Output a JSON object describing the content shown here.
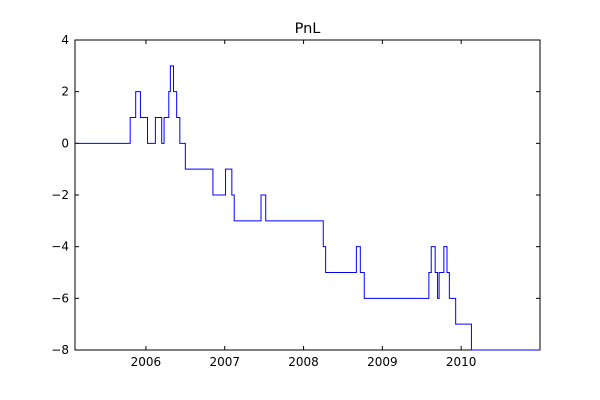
{
  "chart_data": {
    "type": "line",
    "title": "PnL",
    "xlabel": "",
    "ylabel": "",
    "xlim": [
      2005.1,
      2011.0
    ],
    "ylim": [
      -8,
      4
    ],
    "grid": false,
    "x_ticks": [
      {
        "value": 2006,
        "label": "2006"
      },
      {
        "value": 2007,
        "label": "2007"
      },
      {
        "value": 2008,
        "label": "2008"
      },
      {
        "value": 2009,
        "label": "2009"
      },
      {
        "value": 2010,
        "label": "2010"
      }
    ],
    "y_ticks": [
      {
        "value": 4,
        "label": "4"
      },
      {
        "value": 2,
        "label": "2"
      },
      {
        "value": 0,
        "label": "0"
      },
      {
        "value": -2,
        "label": "−2"
      },
      {
        "value": -4,
        "label": "−4"
      },
      {
        "value": -6,
        "label": "−6"
      },
      {
        "value": -8,
        "label": "−8"
      }
    ],
    "series": [
      {
        "color": "#0000ff",
        "step": true,
        "points": [
          [
            2005.1,
            0
          ],
          [
            2005.8,
            1
          ],
          [
            2005.87,
            2
          ],
          [
            2005.93,
            1
          ],
          [
            2006.02,
            0
          ],
          [
            2006.12,
            1
          ],
          [
            2006.2,
            0
          ],
          [
            2006.23,
            1
          ],
          [
            2006.29,
            2
          ],
          [
            2006.31,
            3
          ],
          [
            2006.35,
            2
          ],
          [
            2006.39,
            1
          ],
          [
            2006.43,
            0
          ],
          [
            2006.5,
            -1
          ],
          [
            2006.85,
            -2
          ],
          [
            2007.01,
            -1
          ],
          [
            2007.09,
            -2
          ],
          [
            2007.12,
            -3
          ],
          [
            2007.46,
            -2
          ],
          [
            2007.52,
            -3
          ],
          [
            2008.25,
            -4
          ],
          [
            2008.28,
            -5
          ],
          [
            2008.67,
            -4
          ],
          [
            2008.72,
            -5
          ],
          [
            2008.77,
            -6
          ],
          [
            2009.59,
            -5
          ],
          [
            2009.62,
            -4
          ],
          [
            2009.67,
            -5
          ],
          [
            2009.7,
            -6
          ],
          [
            2009.72,
            -5
          ],
          [
            2009.78,
            -4
          ],
          [
            2009.82,
            -5
          ],
          [
            2009.85,
            -6
          ],
          [
            2009.93,
            -7
          ],
          [
            2010.13,
            -8
          ],
          [
            2011.0,
            -8
          ]
        ]
      }
    ]
  }
}
